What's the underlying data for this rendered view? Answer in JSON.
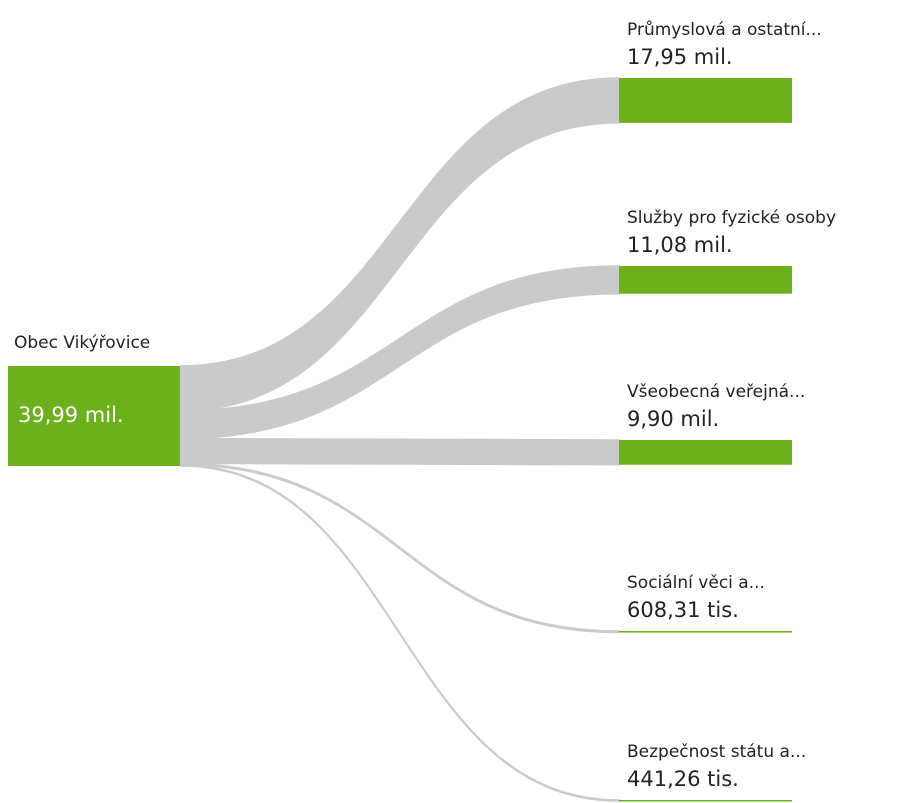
{
  "chart_data": {
    "type": "sankey",
    "source": {
      "name": "Obec Vikýřovice",
      "value": 39990000,
      "value_label": "39,99 mil."
    },
    "targets": [
      {
        "name": "Průmyslová a ostatní...",
        "value": 17950000,
        "value_label": "17,95 mil."
      },
      {
        "name": "Služby pro fyzické osoby",
        "value": 11080000,
        "value_label": "11,08 mil."
      },
      {
        "name": "Všeobecná veřejná...",
        "value": 9900000,
        "value_label": "9,90 mil."
      },
      {
        "name": "Sociální věci a...",
        "value": 608310,
        "value_label": "608,31 tis."
      },
      {
        "name": "Bezpečnost státu a...",
        "value": 441260,
        "value_label": "441,26 tis."
      }
    ],
    "color": "#6cb01c",
    "link_color": "#c8c8c8"
  }
}
